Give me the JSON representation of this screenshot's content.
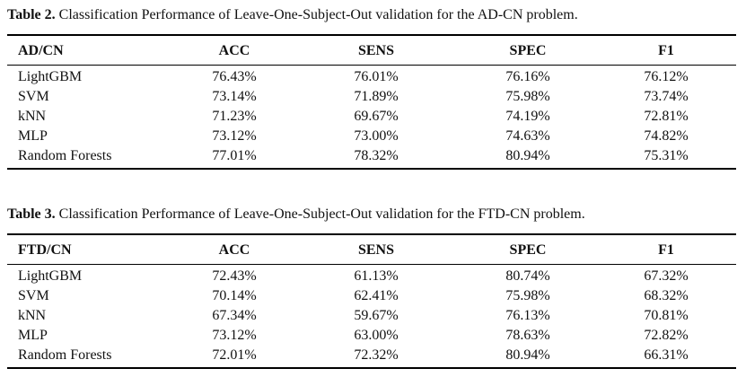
{
  "tables": [
    {
      "caption_num": "Table 2.",
      "caption_text": "Classification Performance of Leave-One-Subject-Out validation for the AD-CN problem.",
      "headers": [
        "AD/CN",
        "ACC",
        "SENS",
        "SPEC",
        "F1"
      ],
      "rows": [
        [
          "LightGBM",
          "76.43%",
          "76.01%",
          "76.16%",
          "76.12%"
        ],
        [
          "SVM",
          "73.14%",
          "71.89%",
          "75.98%",
          "73.74%"
        ],
        [
          "kNN",
          "71.23%",
          "69.67%",
          "74.19%",
          "72.81%"
        ],
        [
          "MLP",
          "73.12%",
          "73.00%",
          "74.63%",
          "74.82%"
        ],
        [
          "Random Forests",
          "77.01%",
          "78.32%",
          "80.94%",
          "75.31%"
        ]
      ]
    },
    {
      "caption_num": "Table 3.",
      "caption_text": "Classification Performance of Leave-One-Subject-Out validation for the FTD-CN problem.",
      "headers": [
        "FTD/CN",
        "ACC",
        "SENS",
        "SPEC",
        "F1"
      ],
      "rows": [
        [
          "LightGBM",
          "72.43%",
          "61.13%",
          "80.74%",
          "67.32%"
        ],
        [
          "SVM",
          "70.14%",
          "62.41%",
          "75.98%",
          "68.32%"
        ],
        [
          "kNN",
          "67.34%",
          "59.67%",
          "76.13%",
          "70.81%"
        ],
        [
          "MLP",
          "73.12%",
          "63.00%",
          "78.63%",
          "72.82%"
        ],
        [
          "Random Forests",
          "72.01%",
          "72.32%",
          "80.94%",
          "66.31%"
        ]
      ]
    }
  ]
}
